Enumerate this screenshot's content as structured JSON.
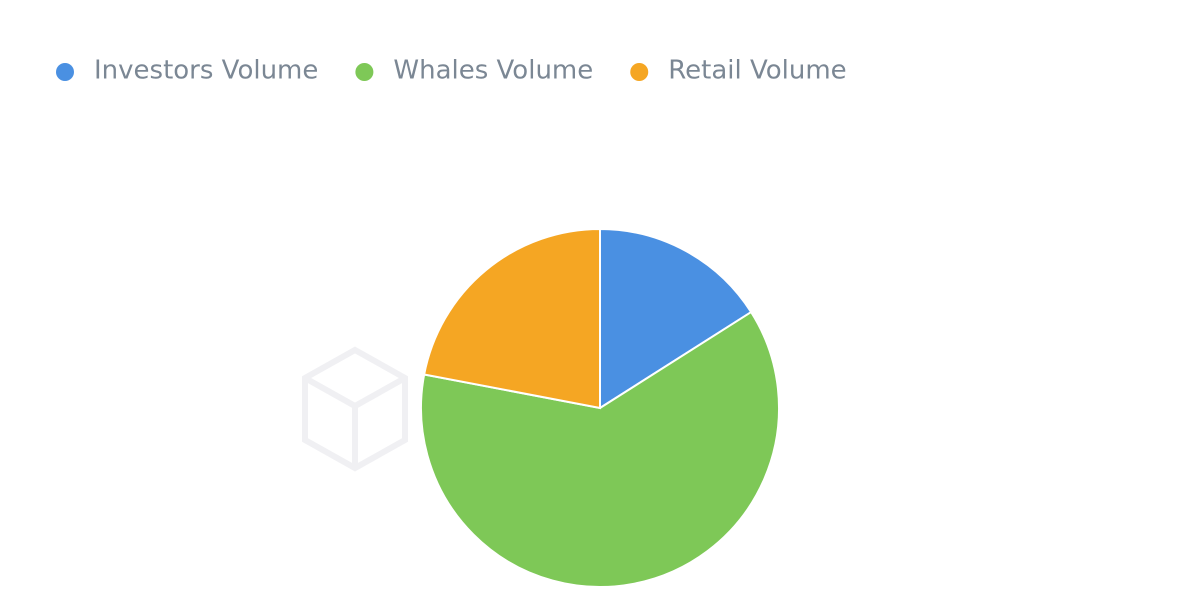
{
  "chart_data": {
    "type": "pie",
    "series": [
      {
        "name": "Investors Volume",
        "color": "#4a90e2",
        "values": [
          16
        ]
      },
      {
        "name": "Whales Volume",
        "color": "#7ec857",
        "values": [
          62
        ]
      },
      {
        "name": "Retail Volume",
        "color": "#f5a623",
        "values": [
          22
        ]
      }
    ],
    "legend": "top-left"
  }
}
